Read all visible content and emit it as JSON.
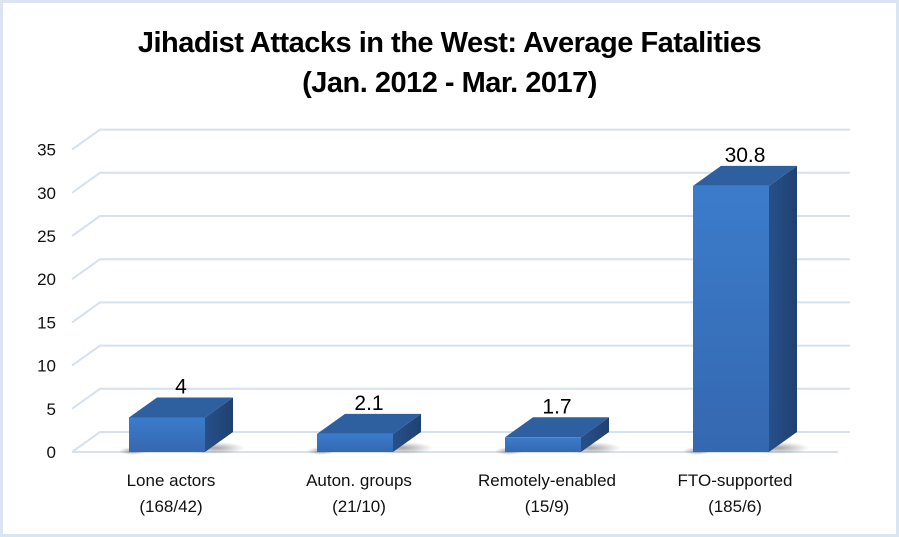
{
  "chart_data": {
    "type": "bar",
    "title": "Jihadist Attacks in the West: Average Fatalities",
    "subtitle": "(Jan. 2012 - Mar. 2017)",
    "categories": [
      "Lone actors (168/42)",
      "Auton. groups (21/10)",
      "Remotely-enabled (15/9)",
      "FTO-supported (185/6)"
    ],
    "category_lines": [
      [
        "Lone actors",
        "(168/42)"
      ],
      [
        "Auton. groups",
        "(21/10)"
      ],
      [
        "Remotely-enabled",
        "(15/9)"
      ],
      [
        "FTO-supported",
        "(185/6)"
      ]
    ],
    "values": [
      4,
      2.1,
      1.7,
      30.8
    ],
    "value_labels": [
      "4",
      "2.1",
      "1.7",
      "30.8"
    ],
    "xlabel": "",
    "ylabel": "",
    "ylim": [
      0,
      35
    ],
    "yticks": [
      0,
      5,
      10,
      15,
      20,
      25,
      30,
      35
    ],
    "grid": true,
    "legend": "none",
    "style": "3d-column",
    "colors": {
      "bar_front": "#3a78c4",
      "bar_top": "#2e5f9e",
      "bar_side": "#24497a",
      "grid": "#d6e0ee",
      "border": "#dbe5f1"
    }
  }
}
